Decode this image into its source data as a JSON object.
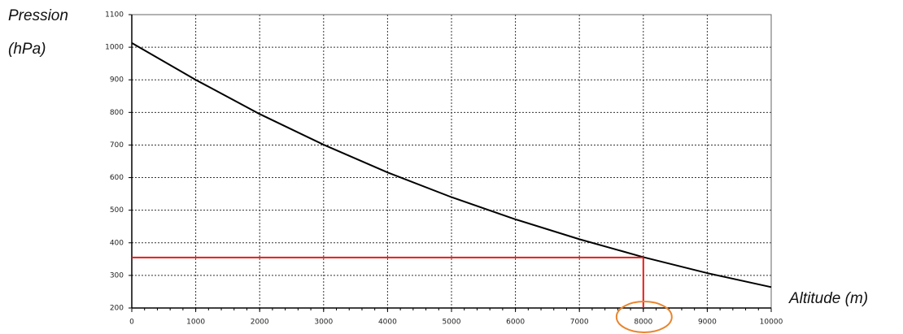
{
  "chart_data": {
    "type": "line",
    "ylabel": [
      "Pression",
      "(hPa)"
    ],
    "xlabel": "Altitude (m)",
    "x": [
      0,
      1000,
      2000,
      3000,
      4000,
      5000,
      6000,
      7000,
      8000,
      9000,
      10000
    ],
    "series": [
      {
        "color": "#000000",
        "values": [
          1013,
          900,
          795,
          701,
          616,
          540,
          472,
          411,
          356,
          307,
          264
        ]
      }
    ],
    "xlim": [
      0,
      10000
    ],
    "xticks": [
      0,
      1000,
      2000,
      3000,
      4000,
      5000,
      6000,
      7000,
      8000,
      9000,
      10000
    ],
    "ylim": [
      200,
      1100
    ],
    "yticks": [
      200,
      300,
      400,
      500,
      600,
      700,
      800,
      900,
      1000,
      1100
    ],
    "grid": true,
    "reading": {
      "x": 8000,
      "y": 355,
      "color": "#e31b1b",
      "circle_color": "#e8852e"
    }
  }
}
